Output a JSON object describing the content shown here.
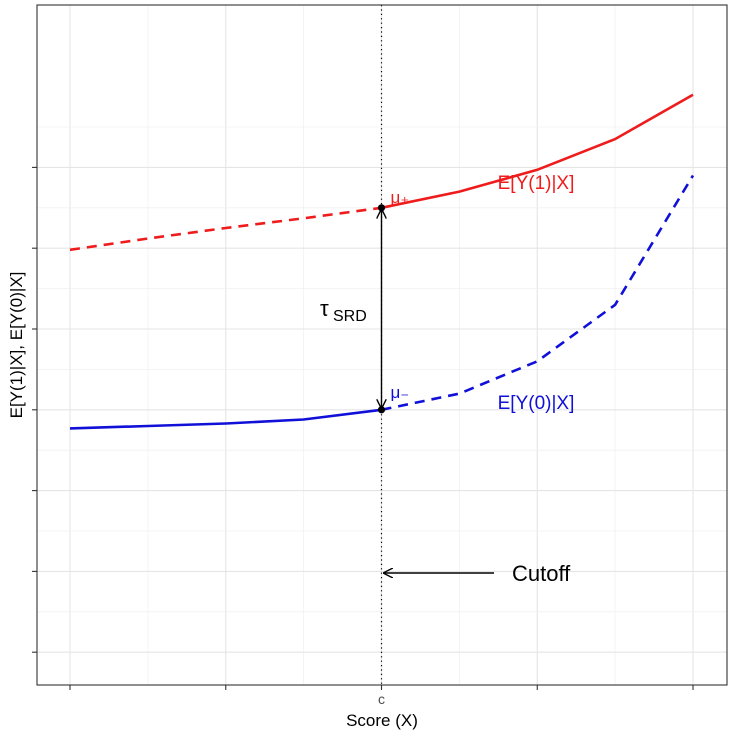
{
  "chart_data": {
    "type": "line",
    "title": "",
    "xlabel": "Score (X)",
    "ylabel": "E[Y(1)|X], E[Y(0)|X]",
    "x_ticks": [
      {
        "x": 0,
        "label": "c"
      }
    ],
    "xlim": [
      -1,
      1
    ],
    "ylim": [
      0,
      1
    ],
    "grid": true,
    "cutoff": 0,
    "series": [
      {
        "name": "E[Y(1)|X]",
        "color": "#ee1c1c",
        "x": [
          -1.0,
          -0.75,
          -0.5,
          -0.25,
          0.0,
          0.25,
          0.5,
          0.75,
          1.0
        ],
        "y": [
          0.598,
          0.612,
          0.625,
          0.637,
          0.65,
          0.67,
          0.697,
          0.735,
          0.79
        ]
      },
      {
        "name": "E[Y(0)|X]",
        "color": "#1010d8",
        "x": [
          -1.0,
          -0.75,
          -0.5,
          -0.25,
          0.0,
          0.25,
          0.5,
          0.75,
          1.0
        ],
        "y": [
          0.377,
          0.38,
          0.383,
          0.388,
          0.4,
          0.42,
          0.46,
          0.53,
          0.69
        ]
      }
    ],
    "annotations": {
      "mu_plus": "μ₊",
      "mu_minus": "μ₋",
      "tau_main": "τ",
      "tau_sub": "SRD",
      "cutoff_label": "Cutoff"
    }
  }
}
